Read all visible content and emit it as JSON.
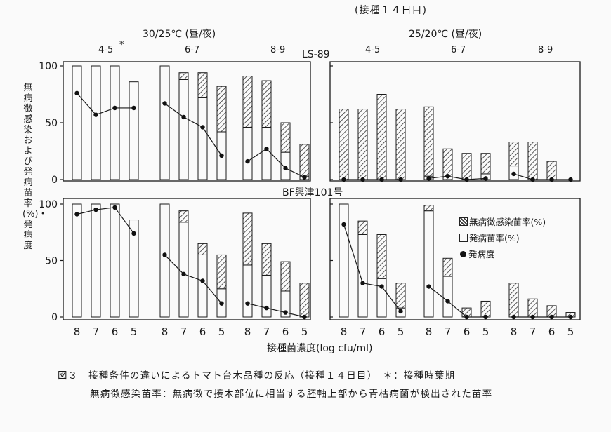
{
  "header": {
    "days_note": "(接種１４日目)"
  },
  "conditions": [
    "30/25℃ (昼/夜)",
    "25/20℃ (昼/夜)"
  ],
  "leaf_stage_groups": [
    "4-5",
    "6-7",
    "8-9"
  ],
  "leaf_stage_marker": "*",
  "varieties": [
    "LS-89",
    "BF興津101号"
  ],
  "y_axis_label": "無病徴感染および発病苗率(%)・発病度",
  "x_axis_label": "接種菌濃度(log cfu/ml)",
  "y_ticks": [
    "0",
    "50",
    "100"
  ],
  "legend": {
    "latent": "無病徴感染苗率(%)",
    "diseased": "発病苗率(%)",
    "severity": "発病度"
  },
  "caption": {
    "line1": "図３　接種条件の違いによるトマト台木品種の反応（接種１４日目）　＊：接種時葉期",
    "line2": "無病徴感染苗率：無病徴で接木部位に相当する胚軸上部から青枯病菌が検出された苗率"
  },
  "colors": {
    "ink": "#1a1a1a",
    "hatch": "#333333",
    "paper": "#fafafa"
  },
  "chart_data": {
    "type": "bar",
    "bar_style": "stacked (diseased = open, latent = hatched) with severity line",
    "categories": [
      "8",
      "7",
      "6",
      "5"
    ],
    "groups": [
      "4-5",
      "6-7",
      "8-9"
    ],
    "ylim": [
      0,
      100
    ],
    "panels": [
      {
        "variety": "LS-89",
        "condition": "30/25℃",
        "diseased": [
          [
            100,
            100,
            100,
            86
          ],
          [
            100,
            88,
            72,
            42
          ],
          [
            46,
            46,
            24,
            3
          ]
        ],
        "latent": [
          [
            0,
            0,
            0,
            0
          ],
          [
            0,
            6,
            22,
            40
          ],
          [
            45,
            41,
            26,
            28
          ]
        ],
        "severity": [
          [
            76,
            57,
            63,
            63
          ],
          [
            67,
            55,
            46,
            21
          ],
          [
            16,
            27,
            10,
            2
          ]
        ]
      },
      {
        "variety": "LS-89",
        "condition": "25/20℃",
        "diseased": [
          [
            0,
            0,
            0,
            0
          ],
          [
            3,
            0,
            0,
            5
          ],
          [
            12,
            0,
            0,
            0
          ]
        ],
        "latent": [
          [
            62,
            62,
            75,
            62
          ],
          [
            61,
            27,
            23,
            18
          ],
          [
            21,
            33,
            16,
            0
          ]
        ],
        "severity": [
          [
            0,
            0,
            0,
            0
          ],
          [
            1,
            3,
            0,
            1
          ],
          [
            5,
            0,
            0,
            0
          ]
        ]
      },
      {
        "variety": "BF興津101号",
        "condition": "30/25℃",
        "diseased": [
          [
            100,
            100,
            100,
            86
          ],
          [
            100,
            84,
            55,
            25
          ],
          [
            46,
            37,
            23,
            0
          ]
        ],
        "latent": [
          [
            0,
            0,
            0,
            0
          ],
          [
            0,
            10,
            10,
            30
          ],
          [
            46,
            28,
            26,
            30
          ]
        ],
        "severity": [
          [
            91,
            95,
            97,
            74
          ],
          [
            55,
            38,
            32,
            12
          ],
          [
            12,
            8,
            4,
            0
          ]
        ]
      },
      {
        "variety": "BF興津101号",
        "condition": "25/20℃",
        "diseased": [
          [
            100,
            73,
            34,
            8
          ],
          [
            94,
            36,
            0,
            0
          ],
          [
            0,
            0,
            0,
            0
          ]
        ],
        "latent": [
          [
            0,
            12,
            39,
            22
          ],
          [
            5,
            16,
            8,
            14
          ],
          [
            30,
            16,
            10,
            4
          ]
        ],
        "severity": [
          [
            82,
            30,
            27,
            5
          ],
          [
            27,
            14,
            0,
            0
          ],
          [
            0,
            0,
            0,
            0
          ]
        ]
      }
    ]
  }
}
